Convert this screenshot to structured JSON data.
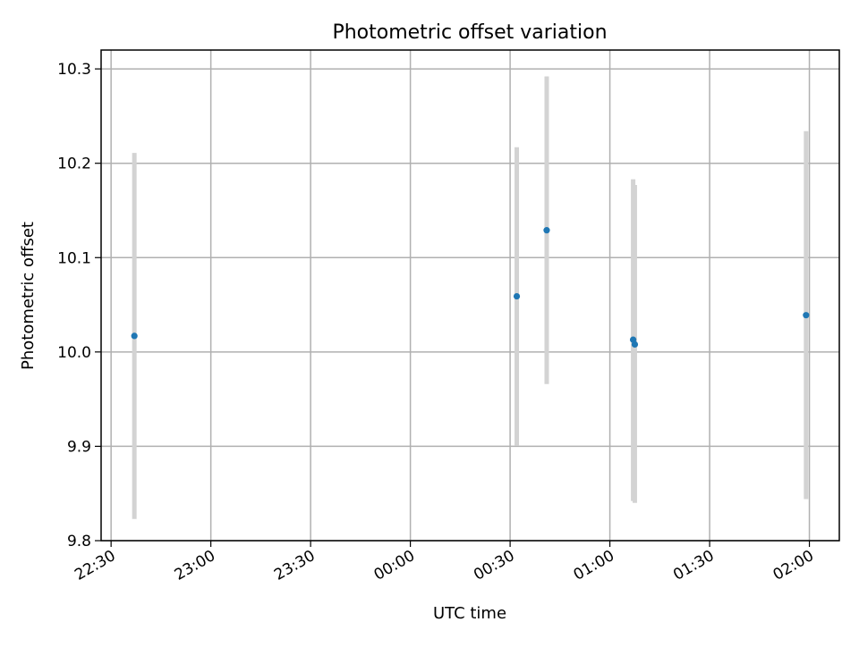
{
  "chart_data": {
    "type": "scatter",
    "title": "Photometric offset variation",
    "xlabel": "UTC time",
    "ylabel": "Photometric offset",
    "ylim": [
      9.8,
      10.32
    ],
    "xlim": [
      "22:27",
      "02:09"
    ],
    "xticks": [
      "22:30",
      "23:00",
      "23:30",
      "00:00",
      "00:30",
      "01:00",
      "01:30",
      "02:00"
    ],
    "yticks": [
      "9.8",
      "9.9",
      "10.0",
      "10.1",
      "10.2",
      "10.3"
    ],
    "grid": true,
    "legend": "none",
    "series": [
      {
        "color": "#1f77b4",
        "errorbar_color": "#d3d3d3",
        "points": [
          {
            "x": "22:37",
            "y": 10.017,
            "ylow": 9.823,
            "yhigh": 10.211
          },
          {
            "x": "00:32",
            "y": 10.059,
            "ylow": 9.901,
            "yhigh": 10.217
          },
          {
            "x": "00:41",
            "y": 10.129,
            "ylow": 9.966,
            "yhigh": 10.292
          },
          {
            "x": "01:07",
            "y": 10.013,
            "ylow": 9.842,
            "yhigh": 10.183
          },
          {
            "x": "01:07:30",
            "y": 10.008,
            "ylow": 9.84,
            "yhigh": 10.177
          },
          {
            "x": "01:59",
            "y": 10.039,
            "ylow": 9.844,
            "yhigh": 10.234
          }
        ]
      }
    ]
  }
}
